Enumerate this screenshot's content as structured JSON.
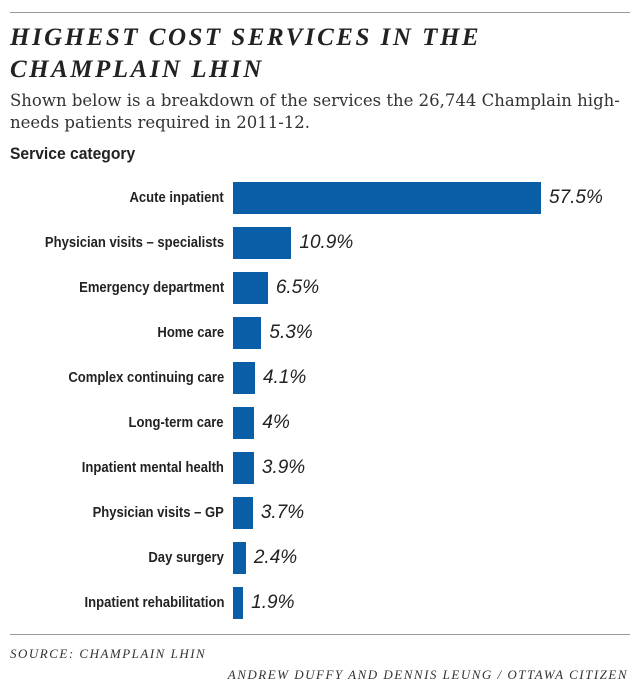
{
  "chart_data": {
    "type": "bar",
    "orientation": "horizontal",
    "title": "HIGHEST COST SERVICES IN THE CHAMPLAIN LHIN",
    "subtitle": "Shown below is a breakdown of the services the 26,744 Champlain high-needs patients required in 2011-12.",
    "ylabel": "Service category",
    "categories": [
      "Acute inpatient",
      "Physician visits – specialists",
      "Emergency department",
      "Home care",
      "Complex continuing care",
      "Long-term care",
      "Inpatient mental health",
      "Physician visits – GP",
      "Day surgery",
      "Inpatient rehabilitation"
    ],
    "values": [
      57.5,
      10.9,
      6.5,
      5.3,
      4.1,
      4,
      3.9,
      3.7,
      2.4,
      1.9
    ],
    "value_labels": [
      "57.5%",
      "10.9%",
      "6.5%",
      "5.3%",
      "4.1%",
      "4%",
      "3.9%",
      "3.7%",
      "2.4%",
      "1.9%"
    ],
    "grid": false,
    "bar_color": "#0a5ea8"
  },
  "footer": {
    "source": "SOURCE: CHAMPLAIN LHIN",
    "credit": "ANDREW DUFFY AND DENNIS LEUNG / OTTAWA CITIZEN"
  }
}
